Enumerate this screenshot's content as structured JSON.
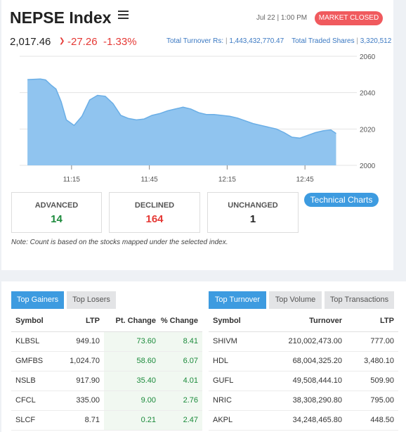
{
  "header": {
    "title": "NEPSE Index",
    "date": "Jul 22 | 1:00 PM",
    "market_status": "MARKET CLOSED",
    "value": "2,017.46",
    "change": "-27.26",
    "change_pct": "-1.33%",
    "turnover_label": "Total Turnover Rs:",
    "turnover_value": "1,443,432,770.47",
    "shares_label": "Total Traded Shares",
    "shares_value": "3,320,512"
  },
  "chart_data": {
    "type": "area",
    "x_ticks": [
      "11:15",
      "11:45",
      "12:15",
      "12:45"
    ],
    "y_ticks": [
      2000,
      2020,
      2040,
      2060
    ],
    "ylim": [
      2000,
      2060
    ],
    "series": [
      {
        "x": [
          "10:58",
          "11:03",
          "11:05",
          "11:07",
          "11:09",
          "11:11",
          "11:13",
          "11:16",
          "11:19",
          "11:22",
          "11:25",
          "11:28",
          "11:31",
          "11:34",
          "11:37",
          "11:40",
          "11:43",
          "11:46",
          "11:49",
          "11:52",
          "11:55",
          "11:58",
          "12:01",
          "12:04",
          "12:07",
          "12:10",
          "12:13",
          "12:16",
          "12:19",
          "12:22",
          "12:25",
          "12:28",
          "12:31",
          "12:34",
          "12:37",
          "12:40",
          "12:43",
          "12:46",
          "12:49",
          "12:52",
          "12:55",
          "12:57"
        ],
        "values": [
          2047.2,
          2047.5,
          2047.0,
          2044.3,
          2042.0,
          2035.0,
          2025.0,
          2022.0,
          2027.0,
          2036.0,
          2038.5,
          2038.0,
          2034.0,
          2027.5,
          2025.8,
          2025.0,
          2025.5,
          2027.5,
          2028.5,
          2030.0,
          2031.0,
          2032.0,
          2031.0,
          2029.0,
          2028.0,
          2028.0,
          2027.5,
          2027.0,
          2026.0,
          2024.5,
          2023.0,
          2022.0,
          2021.0,
          2020.0,
          2018.0,
          2015.5,
          2015.0,
          2016.5,
          2018.0,
          2019.0,
          2019.5,
          2017.5
        ]
      }
    ],
    "fill_color": "#90c4ef",
    "line_color": "#6aaee6",
    "grid": true
  },
  "stats": {
    "advanced_label": "ADVANCED",
    "advanced": "14",
    "declined_label": "DECLINED",
    "declined": "164",
    "unchanged_label": "UNCHANGED",
    "unchanged": "1"
  },
  "tech_charts_label": "Technical Charts",
  "note": "Note: Count is based on the stocks mapped under the selected index.",
  "gainers_tabs": [
    "Top Gainers",
    "Top Losers"
  ],
  "gainers": {
    "headers": [
      "Symbol",
      "LTP",
      "Pt. Change",
      "% Change"
    ],
    "rows": [
      [
        "KLBSL",
        "949.10",
        "73.60",
        "8.41"
      ],
      [
        "GMFBS",
        "1,024.70",
        "58.60",
        "6.07"
      ],
      [
        "NSLB",
        "917.90",
        "35.40",
        "4.01"
      ],
      [
        "CFCL",
        "335.00",
        "9.00",
        "2.76"
      ],
      [
        "SLCF",
        "8.71",
        "0.21",
        "2.47"
      ]
    ]
  },
  "turnover_tabs": [
    "Top Turnover",
    "Top Volume",
    "Top Transactions"
  ],
  "turnover_table": {
    "headers": [
      "Symbol",
      "Turnover",
      "LTP"
    ],
    "rows": [
      [
        "SHIVM",
        "210,002,473.00",
        "777.00"
      ],
      [
        "HDL",
        "68,004,325.20",
        "3,480.10"
      ],
      [
        "GUFL",
        "49,508,444.10",
        "509.90"
      ],
      [
        "NRIC",
        "38,308,290.80",
        "795.00"
      ],
      [
        "AKPL",
        "34,248,465.80",
        "448.50"
      ]
    ]
  },
  "colors": {
    "accent": "#3d9be0",
    "negative": "#e53935",
    "positive": "#1b8a3b",
    "badge": "#f05a5e"
  }
}
